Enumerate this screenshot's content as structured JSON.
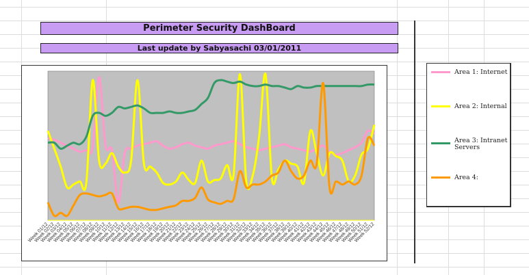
{
  "sheet": {
    "title": "Perimeter Security DashBoard",
    "last_update": "Last update by Sabyasachi 03/01/2011"
  },
  "chart_data": {
    "type": "line",
    "title": "",
    "xlabel": "",
    "ylabel": "",
    "plot_bg": "#c0c0c0",
    "grid": false,
    "legend_position": "right",
    "ylim": [
      0,
      100
    ],
    "x": [
      "Week 01/12",
      "Week 02/12",
      "Week 03/12",
      "Week 04/12",
      "Week 05/12",
      "Week 06/12",
      "Week 07/12",
      "Week 08/12",
      "Week 09/12",
      "Week 10/12",
      "Week 11/12",
      "Week 12/12",
      "Week 13/12",
      "Week 14/12",
      "Week 15/12",
      "Week 16/12",
      "Week 17/12",
      "Week 18/12",
      "Week 19/12",
      "Week 20/12",
      "Week 21/12",
      "Week 22/12",
      "Week 23/12",
      "Week 24/12",
      "Week 25/12",
      "Week 26/12",
      "Week 27/12",
      "Week 28/12",
      "Week 29/12",
      "Week 30/12",
      "Week 31/12",
      "Week 32/12",
      "Week 33/12",
      "Week 34/12",
      "Week 35/12",
      "Week 36/12",
      "Week 37/12",
      "Week 38/12",
      "Week 39/12",
      "Week 40/12",
      "Week 41/12",
      "Week 42/12",
      "Week 43/12",
      "Week 44/12",
      "Week 45/12",
      "Week 46/12",
      "Week 47/12",
      "Week 48/12",
      "Week 49/12",
      "Week 50/12",
      "Week 51/12",
      "Week 52/12"
    ],
    "series": [
      {
        "name": "Area 1: Internet",
        "color": "#ff99cc",
        "values": [
          55,
          54,
          52,
          50,
          48,
          46,
          47,
          49,
          96,
          50,
          47,
          12,
          45,
          48,
          50,
          51,
          52,
          53,
          50,
          48,
          49,
          51,
          52,
          50,
          49,
          48,
          50,
          51,
          52,
          53,
          51,
          49,
          48,
          47,
          48,
          49,
          50,
          51,
          49,
          48,
          47,
          46,
          48,
          50,
          46,
          44,
          45,
          47,
          49,
          52,
          60,
          58
        ]
      },
      {
        "name": "Area 2: Internal",
        "color": "#ffff00",
        "values": [
          60,
          48,
          36,
          22,
          24,
          26,
          25,
          94,
          40,
          38,
          45,
          36,
          32,
          40,
          94,
          38,
          36,
          32,
          25,
          24,
          26,
          32,
          27,
          25,
          40,
          26,
          27,
          28,
          37,
          30,
          98,
          26,
          30,
          56,
          98,
          28,
          34,
          40,
          38,
          36,
          25,
          60,
          45,
          30,
          45,
          43,
          40,
          26,
          30,
          44,
          48,
          64
        ]
      },
      {
        "name": "Area 3: Intranet Servers",
        "color": "#339966",
        "values": [
          52,
          52,
          48,
          50,
          52,
          51,
          56,
          70,
          72,
          70,
          72,
          76,
          75,
          76,
          77,
          75,
          72,
          72,
          72,
          73,
          72,
          72,
          73,
          74,
          78,
          82,
          92,
          94,
          93,
          92,
          93,
          91,
          90,
          90,
          91,
          90,
          90,
          89,
          88,
          90,
          89,
          89,
          90,
          90,
          90,
          90,
          90,
          90,
          90,
          90,
          91,
          91
        ]
      },
      {
        "name": "Area 4:",
        "color": "#ff9900",
        "values": [
          12,
          3,
          5,
          3,
          10,
          17,
          18,
          17,
          16,
          17,
          18,
          8,
          8,
          9,
          9,
          8,
          7,
          7,
          8,
          9,
          10,
          13,
          13,
          15,
          22,
          14,
          12,
          11,
          13,
          14,
          33,
          22,
          24,
          24,
          26,
          30,
          32,
          40,
          33,
          28,
          30,
          40,
          38,
          92,
          22,
          26,
          24,
          26,
          24,
          30,
          55,
          50
        ]
      }
    ]
  },
  "legend": {
    "items": [
      {
        "label": "Area 1: Internet",
        "color": "#ff99cc"
      },
      {
        "label": "Area 2: Internal",
        "color": "#ffff00"
      },
      {
        "label": "Area 3: Intranet Servers",
        "color": "#339966"
      },
      {
        "label": "Area 4:",
        "color": "#ff9900"
      }
    ]
  }
}
